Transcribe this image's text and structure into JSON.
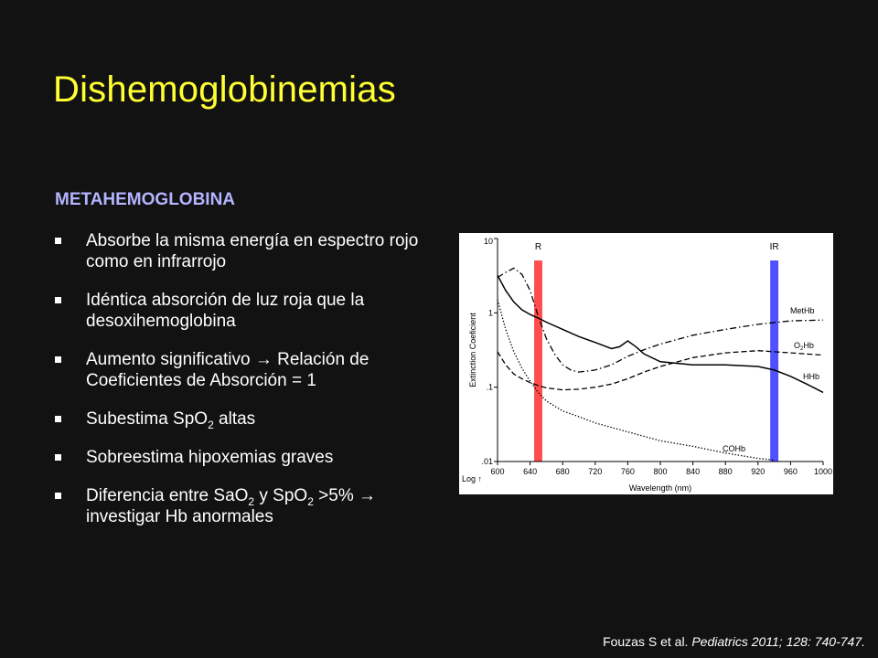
{
  "slide": {
    "title": "Dishemoglobinemias",
    "subtitle": "METAHEMOGLOBINA",
    "bullets": [
      {
        "parts": [
          {
            "t": "Absorbe la misma energía en espectro rojo como en infrarrojo"
          }
        ]
      },
      {
        "parts": [
          {
            "t": "Idéntica absorción de luz roja que la desoxihemoglobina"
          }
        ]
      },
      {
        "parts": [
          {
            "t": "Aumento significativo → Relación de Coeficientes de Absorción = 1"
          }
        ]
      },
      {
        "parts": [
          {
            "t": "Subestima SpO"
          },
          {
            "t": "2",
            "sub": true
          },
          {
            "t": " altas"
          }
        ]
      },
      {
        "parts": [
          {
            "t": "Sobreestima hipoxemias graves"
          }
        ]
      },
      {
        "parts": [
          {
            "t": "Diferencia entre SaO"
          },
          {
            "t": "2",
            "sub": true
          },
          {
            "t": " y SpO"
          },
          {
            "t": "2",
            "sub": true
          },
          {
            "t": " >5% → investigar Hb anormales"
          }
        ]
      }
    ],
    "citation": {
      "authors": "Fouzas S et al. ",
      "journal": "Pediatrics 2011; 128: 740-747."
    }
  },
  "chart_data": {
    "type": "line",
    "title": "",
    "xlabel": "Wavelength (nm)",
    "ylabel": "Extinction Coeficient",
    "y_axis_note": "Log ↑",
    "y_scale": "log",
    "xlim": [
      600,
      1000
    ],
    "ylim": [
      0.01,
      10
    ],
    "x_ticks": [
      "600",
      "640",
      "680",
      "720",
      "760",
      "800",
      "840",
      "880",
      "920",
      "960",
      "1000"
    ],
    "y_ticks": [
      {
        "value": 0.01,
        "label": ".01"
      },
      {
        "value": 0.1,
        "label": ".1"
      },
      {
        "value": 1,
        "label": "1"
      },
      {
        "value": 10,
        "label": "10"
      }
    ],
    "bands": [
      {
        "label": "R",
        "from": 645,
        "to": 655,
        "color": "#ff4d4d"
      },
      {
        "label": "IR",
        "from": 935,
        "to": 945,
        "color": "#5050ff"
      }
    ],
    "series": [
      {
        "name": "MetHb",
        "name_sub": "",
        "name_after": "",
        "style": "dashdot",
        "x": [
          600,
          610,
          620,
          630,
          640,
          650,
          660,
          670,
          680,
          690,
          700,
          720,
          740,
          760,
          780,
          800,
          840,
          880,
          920,
          960,
          1000
        ],
        "y": [
          3.0,
          3.5,
          4.0,
          3.3,
          2.0,
          0.9,
          0.45,
          0.28,
          0.2,
          0.17,
          0.16,
          0.17,
          0.2,
          0.26,
          0.32,
          0.38,
          0.5,
          0.6,
          0.7,
          0.78,
          0.8
        ]
      },
      {
        "name": "O",
        "name_sub": "2",
        "name_after": "Hb",
        "style": "dashed",
        "x": [
          600,
          610,
          620,
          630,
          640,
          650,
          660,
          680,
          700,
          720,
          740,
          760,
          780,
          800,
          840,
          880,
          920,
          940,
          960,
          1000
        ],
        "y": [
          0.3,
          0.2,
          0.15,
          0.13,
          0.115,
          0.105,
          0.098,
          0.092,
          0.094,
          0.1,
          0.11,
          0.13,
          0.16,
          0.19,
          0.25,
          0.29,
          0.31,
          0.3,
          0.29,
          0.27
        ]
      },
      {
        "name": "HHb",
        "name_sub": "",
        "name_after": "",
        "style": "solid",
        "x": [
          600,
          610,
          620,
          630,
          640,
          650,
          660,
          680,
          700,
          720,
          740,
          750,
          760,
          770,
          780,
          800,
          840,
          880,
          920,
          940,
          960,
          980,
          1000
        ],
        "y": [
          3.2,
          2.0,
          1.4,
          1.1,
          0.95,
          0.85,
          0.75,
          0.6,
          0.48,
          0.4,
          0.33,
          0.35,
          0.42,
          0.35,
          0.28,
          0.22,
          0.2,
          0.2,
          0.19,
          0.17,
          0.14,
          0.11,
          0.085
        ]
      },
      {
        "name": "COHb",
        "name_sub": "",
        "name_after": "",
        "style": "dotted",
        "x": [
          600,
          610,
          620,
          630,
          640,
          650,
          660,
          680,
          700,
          720,
          760,
          800,
          840,
          880,
          920,
          940
        ],
        "y": [
          1.5,
          0.6,
          0.3,
          0.18,
          0.12,
          0.085,
          0.065,
          0.048,
          0.04,
          0.033,
          0.025,
          0.019,
          0.016,
          0.013,
          0.011,
          0.0105
        ]
      }
    ]
  }
}
